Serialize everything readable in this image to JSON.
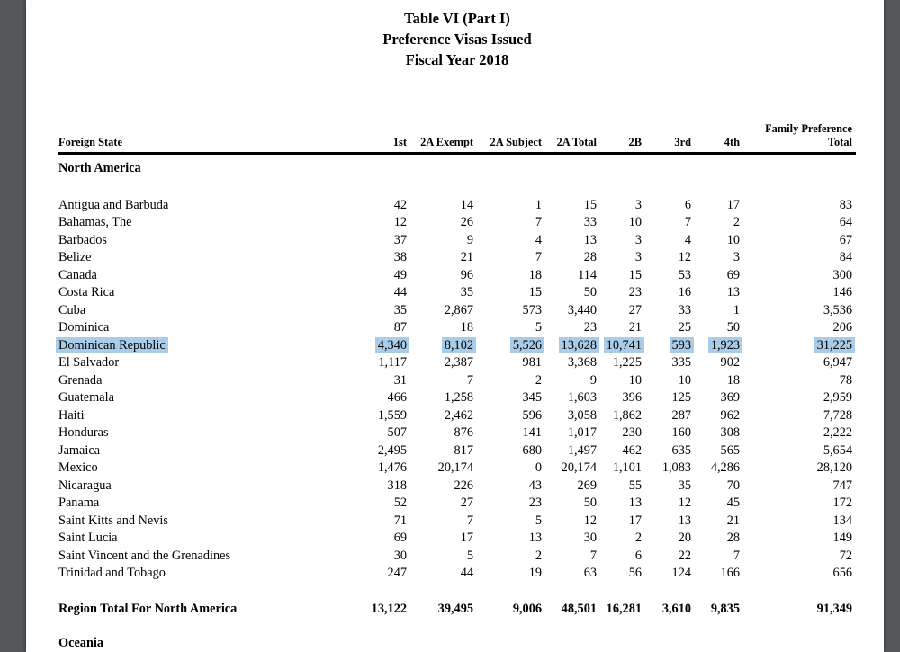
{
  "document": {
    "title_lines": [
      "Table VI (Part I)",
      "Preference Visas Issued",
      "Fiscal Year 2018"
    ]
  },
  "table": {
    "first_col_header": "Foreign State",
    "numeric_headers": [
      "1st",
      "2A Exempt",
      "2A Subject",
      "2A Total",
      "2B",
      "3rd",
      "4th"
    ],
    "last_col_header_line1": "Family Preference",
    "last_col_header_line2": "Total",
    "region_heading": "North America",
    "rows": [
      {
        "name": "Antigua and Barbuda",
        "values": [
          "42",
          "14",
          "1",
          "15",
          "3",
          "6",
          "17",
          "83"
        ],
        "highlighted": false
      },
      {
        "name": "Bahamas, The",
        "values": [
          "12",
          "26",
          "7",
          "33",
          "10",
          "7",
          "2",
          "64"
        ],
        "highlighted": false
      },
      {
        "name": "Barbados",
        "values": [
          "37",
          "9",
          "4",
          "13",
          "3",
          "4",
          "10",
          "67"
        ],
        "highlighted": false
      },
      {
        "name": "Belize",
        "values": [
          "38",
          "21",
          "7",
          "28",
          "3",
          "12",
          "3",
          "84"
        ],
        "highlighted": false
      },
      {
        "name": "Canada",
        "values": [
          "49",
          "96",
          "18",
          "114",
          "15",
          "53",
          "69",
          "300"
        ],
        "highlighted": false
      },
      {
        "name": "Costa Rica",
        "values": [
          "44",
          "35",
          "15",
          "50",
          "23",
          "16",
          "13",
          "146"
        ],
        "highlighted": false
      },
      {
        "name": "Cuba",
        "values": [
          "35",
          "2,867",
          "573",
          "3,440",
          "27",
          "33",
          "1",
          "3,536"
        ],
        "highlighted": false
      },
      {
        "name": "Dominica",
        "values": [
          "87",
          "18",
          "5",
          "23",
          "21",
          "25",
          "50",
          "206"
        ],
        "highlighted": false
      },
      {
        "name": "Dominican Republic",
        "values": [
          "4,340",
          "8,102",
          "5,526",
          "13,628",
          "10,741",
          "593",
          "1,923",
          "31,225"
        ],
        "highlighted": true
      },
      {
        "name": "El Salvador",
        "values": [
          "1,117",
          "2,387",
          "981",
          "3,368",
          "1,225",
          "335",
          "902",
          "6,947"
        ],
        "highlighted": false
      },
      {
        "name": "Grenada",
        "values": [
          "31",
          "7",
          "2",
          "9",
          "10",
          "10",
          "18",
          "78"
        ],
        "highlighted": false
      },
      {
        "name": "Guatemala",
        "values": [
          "466",
          "1,258",
          "345",
          "1,603",
          "396",
          "125",
          "369",
          "2,959"
        ],
        "highlighted": false
      },
      {
        "name": "Haiti",
        "values": [
          "1,559",
          "2,462",
          "596",
          "3,058",
          "1,862",
          "287",
          "962",
          "7,728"
        ],
        "highlighted": false
      },
      {
        "name": "Honduras",
        "values": [
          "507",
          "876",
          "141",
          "1,017",
          "230",
          "160",
          "308",
          "2,222"
        ],
        "highlighted": false
      },
      {
        "name": "Jamaica",
        "values": [
          "2,495",
          "817",
          "680",
          "1,497",
          "462",
          "635",
          "565",
          "5,654"
        ],
        "highlighted": false
      },
      {
        "name": "Mexico",
        "values": [
          "1,476",
          "20,174",
          "0",
          "20,174",
          "1,101",
          "1,083",
          "4,286",
          "28,120"
        ],
        "highlighted": false
      },
      {
        "name": "Nicaragua",
        "values": [
          "318",
          "226",
          "43",
          "269",
          "55",
          "35",
          "70",
          "747"
        ],
        "highlighted": false
      },
      {
        "name": "Panama",
        "values": [
          "52",
          "27",
          "23",
          "50",
          "13",
          "12",
          "45",
          "172"
        ],
        "highlighted": false
      },
      {
        "name": "Saint Kitts and Nevis",
        "values": [
          "71",
          "7",
          "5",
          "12",
          "17",
          "13",
          "21",
          "134"
        ],
        "highlighted": false
      },
      {
        "name": "Saint Lucia",
        "values": [
          "69",
          "17",
          "13",
          "30",
          "2",
          "20",
          "28",
          "149"
        ],
        "highlighted": false
      },
      {
        "name": "Saint Vincent and the Grenadines",
        "values": [
          "30",
          "5",
          "2",
          "7",
          "6",
          "22",
          "7",
          "72"
        ],
        "highlighted": false
      },
      {
        "name": "Trinidad and Tobago",
        "values": [
          "247",
          "44",
          "19",
          "63",
          "56",
          "124",
          "166",
          "656"
        ],
        "highlighted": false
      }
    ],
    "total_row": {
      "name": "Region Total For North America",
      "values": [
        "13,122",
        "39,495",
        "9,006",
        "48,501",
        "16,281",
        "3,610",
        "9,835",
        "91,349"
      ]
    },
    "next_region_heading": "Oceania"
  },
  "colors": {
    "selection_highlight": "#a9cde9",
    "viewer_chrome": "#54585b"
  }
}
